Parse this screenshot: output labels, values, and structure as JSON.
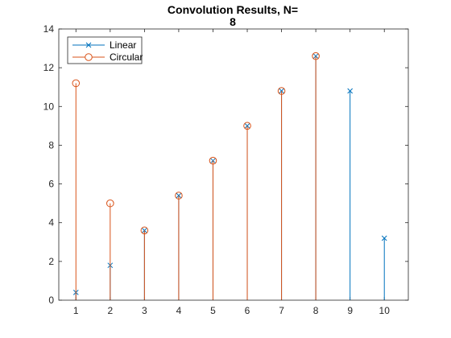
{
  "chart_data": {
    "type": "stem",
    "title_lines": [
      "Convolution Results, N=",
      "8"
    ],
    "xlabel": "",
    "ylabel": "",
    "xlim": [
      0.5,
      10.7
    ],
    "ylim": [
      0,
      14
    ],
    "x_ticks": [
      1,
      2,
      3,
      4,
      5,
      6,
      7,
      8,
      9,
      10
    ],
    "y_ticks": [
      0,
      2,
      4,
      6,
      8,
      10,
      12,
      14
    ],
    "grid": false,
    "legend_position": "top-left",
    "series": [
      {
        "name": "Linear",
        "marker": "x",
        "color": "#0072BD",
        "x": [
          1,
          2,
          3,
          4,
          5,
          6,
          7,
          8,
          9,
          10
        ],
        "values": [
          0.4,
          1.8,
          3.6,
          5.4,
          7.2,
          9.0,
          10.8,
          12.6,
          10.8,
          3.2
        ]
      },
      {
        "name": "Circular",
        "marker": "o",
        "color": "#D95319",
        "x": [
          1,
          2,
          3,
          4,
          5,
          6,
          7,
          8
        ],
        "values": [
          11.2,
          5.0,
          3.6,
          5.4,
          7.2,
          9.0,
          10.8,
          12.6
        ]
      }
    ]
  }
}
